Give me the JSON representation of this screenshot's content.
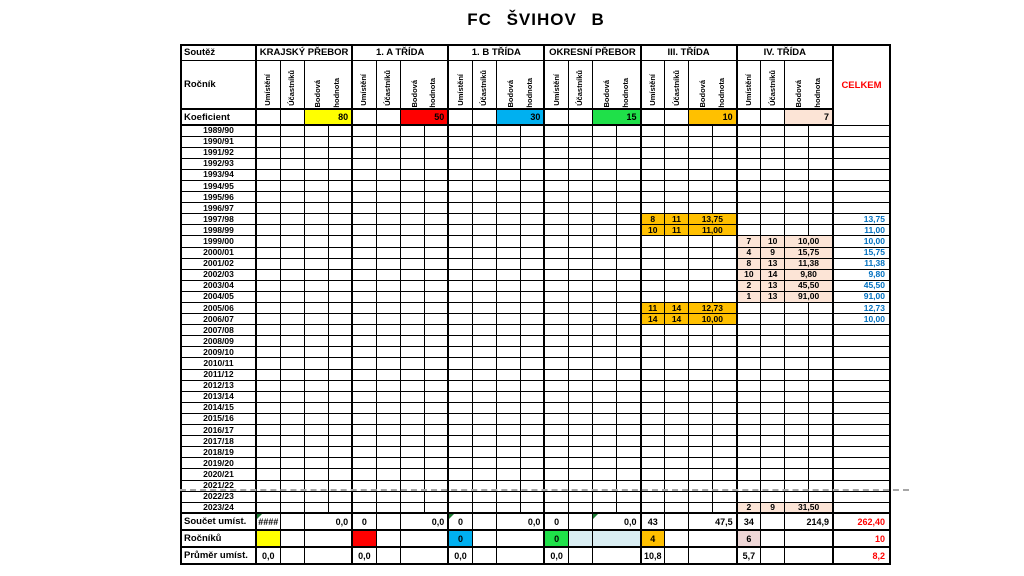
{
  "title": "FC  ŠVIHOV  B",
  "colors": {
    "koef_yellow": "#FFFF00",
    "koef_red": "#FF0000",
    "koef_cyan": "#00B0F0",
    "koef_green": "#1FE049",
    "koef_orange": "#FFC000",
    "koef_peach": "#FCE4D6",
    "light_blue": "#DAEEF3",
    "pink": "#EFD7D7",
    "celkem_blue_text": "#0070C0",
    "summary_red_text": "#FF0000"
  },
  "table": {
    "corner_label": "Soutěž",
    "rocnik_label": "Ročník",
    "koeficient_label": "Koeficient",
    "celkem_label": "CELKEM",
    "sub_headers": [
      "Umístění",
      "Účastníků",
      "Bodová",
      "hodnota"
    ],
    "leagues": [
      {
        "name": "KRAJSKÝ PŘEBOR",
        "koef": "80",
        "koef_color": "#FFFF00"
      },
      {
        "name": "1. A TŘÍDA",
        "koef": "50",
        "koef_color": "#FF0000"
      },
      {
        "name": "1. B TŘÍDA",
        "koef": "30",
        "koef_color": "#00B0F0"
      },
      {
        "name": "OKRESNÍ PŘEBOR",
        "koef": "15",
        "koef_color": "#1FE049"
      },
      {
        "name": "III. TŘÍDA",
        "koef": "10",
        "koef_color": "#FFC000"
      },
      {
        "name": "IV. TŘÍDA",
        "koef": "7",
        "koef_color": "#FCE4D6"
      }
    ],
    "seasons": [
      "1989/90",
      "1990/91",
      "1991/92",
      "1992/93",
      "1993/94",
      "1994/95",
      "1995/96",
      "1996/97",
      "1997/98",
      "1998/99",
      "1999/00",
      "2000/01",
      "2001/02",
      "2002/03",
      "2003/04",
      "2004/05",
      "2005/06",
      "2006/07",
      "2007/08",
      "2008/09",
      "2009/10",
      "2010/11",
      "2011/12",
      "2012/13",
      "2013/14",
      "2014/15",
      "2015/16",
      "2016/17",
      "2017/18",
      "2018/19",
      "2019/20",
      "2020/21",
      "2021/22",
      "2022/23",
      "2023/24"
    ],
    "season_data": {
      "1997/98": {
        "league": 4,
        "umisteni": "8",
        "ucastniku": "11",
        "bodova": "13,75",
        "bg": "#FFC000",
        "celkem": "13,75"
      },
      "1998/99": {
        "league": 4,
        "umisteni": "10",
        "ucastniku": "11",
        "bodova": "11,00",
        "bg": "#FFC000",
        "celkem": "11,00"
      },
      "1999/00": {
        "league": 5,
        "umisteni": "7",
        "ucastniku": "10",
        "bodova": "10,00",
        "bg": "#FCE4D6",
        "celkem": "10,00"
      },
      "2000/01": {
        "league": 5,
        "umisteni": "4",
        "ucastniku": "9",
        "bodova": "15,75",
        "bg": "#FCE4D6",
        "celkem": "15,75"
      },
      "2001/02": {
        "league": 5,
        "umisteni": "8",
        "ucastniku": "13",
        "bodova": "11,38",
        "bg": "#FCE4D6",
        "celkem": "11,38"
      },
      "2002/03": {
        "league": 5,
        "umisteni": "10",
        "ucastniku": "14",
        "bodova": "9,80",
        "bg": "#FCE4D6",
        "celkem": "9,80"
      },
      "2003/04": {
        "league": 5,
        "umisteni": "2",
        "ucastniku": "13",
        "bodova": "45,50",
        "bg": "#FCE4D6",
        "celkem": "45,50"
      },
      "2004/05": {
        "league": 5,
        "umisteni": "1",
        "ucastniku": "13",
        "bodova": "91,00",
        "bg": "#FCE4D6",
        "celkem": "91,00"
      },
      "2005/06": {
        "league": 4,
        "umisteni": "11",
        "ucastniku": "14",
        "bodova": "12,73",
        "bg": "#FFC000",
        "celkem": "12,73"
      },
      "2006/07": {
        "league": 4,
        "umisteni": "14",
        "ucastniku": "14",
        "bodova": "10,00",
        "bg": "#FFC000",
        "celkem": "10,00"
      },
      "2023/24": {
        "league": 5,
        "umisteni": "2",
        "ucastniku": "9",
        "bodova": "31,50",
        "bg": "#FCE4D6",
        "celkem": ""
      }
    },
    "soucet_row": {
      "label": "Součet umíst.",
      "cells": [
        {
          "umisteni": "####",
          "bodova": "0,0",
          "tri_um": true
        },
        {
          "umisteni": "0",
          "bodova": "0,0"
        },
        {
          "umisteni": "0",
          "bodova": "0,0",
          "tri_um": true
        },
        {
          "umisteni": "0",
          "bodova": "0,0",
          "tri_bod": true
        },
        {
          "umisteni": "43",
          "bodova": "47,5"
        },
        {
          "umisteni": "34",
          "bodova": "214,9"
        }
      ],
      "celkem": "262,40"
    },
    "rocniku_row": {
      "label": "Ročníků",
      "cells": [
        {
          "umisteni": "",
          "um_bg": "#FFFF00"
        },
        {
          "umisteni": "",
          "um_bg": "#FF0000"
        },
        {
          "umisteni": "0",
          "um_bg": "#00B0F0"
        },
        {
          "umisteni": "0",
          "um_bg": "#1FE049",
          "uc_bg": "#DAEEF3",
          "bod_bg": "#DAEEF3"
        },
        {
          "umisteni": "4",
          "um_bg": "#FFC000"
        },
        {
          "umisteni": "6",
          "um_bg": "#EFD7D7"
        }
      ],
      "celkem": "10"
    },
    "prumer_row": {
      "label": "Průměr umíst.",
      "cells": [
        "0,0",
        "0,0",
        "0,0",
        "0,0",
        "10,8",
        "5,7"
      ],
      "celkem": "8,2"
    }
  }
}
